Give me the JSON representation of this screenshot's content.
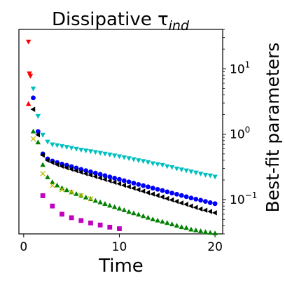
{
  "chart_data": {
    "type": "scatter",
    "title": "Dissipative τ",
    "title_subscript": "ind",
    "xlabel": "Time",
    "ylabel": "Best-fit parameters",
    "xlim": [
      -0.5,
      20.8
    ],
    "ylim": [
      0.03,
      40
    ],
    "yscale": "log",
    "y_axis_side": "right",
    "grid": false,
    "legend": "none",
    "xticks": [
      0,
      10,
      20
    ],
    "xtick_labels": [
      "0",
      "10",
      "20"
    ],
    "yticks": [
      0.1,
      1,
      10
    ],
    "series": [
      {
        "color": "#ff0000",
        "marker": "triangle-down",
        "points": [
          [
            0.5,
            26.0
          ],
          [
            0.6,
            8.5
          ],
          [
            0.7,
            7.8
          ]
        ]
      },
      {
        "color": "#ff0000",
        "marker": "triangle-up",
        "points": [
          [
            0.5,
            2.9
          ]
        ]
      },
      {
        "color": "#00bfbf",
        "marker": "triangle-down",
        "points": [
          [
            1.0,
            5.0
          ],
          [
            1.5,
            1.9
          ],
          [
            2.0,
            0.98
          ],
          [
            2.5,
            0.77
          ],
          [
            3.0,
            0.7
          ],
          [
            3.5,
            0.68
          ],
          [
            4.0,
            0.66
          ],
          [
            4.5,
            0.64
          ],
          [
            5.0,
            0.62
          ],
          [
            5.5,
            0.6
          ],
          [
            6.0,
            0.58
          ],
          [
            6.5,
            0.565
          ],
          [
            7.0,
            0.55
          ],
          [
            7.5,
            0.535
          ],
          [
            8.0,
            0.52
          ],
          [
            8.5,
            0.505
          ],
          [
            9.0,
            0.49
          ],
          [
            9.5,
            0.475
          ],
          [
            10.0,
            0.46
          ],
          [
            10.5,
            0.445
          ],
          [
            11.0,
            0.43
          ],
          [
            11.5,
            0.415
          ],
          [
            12.0,
            0.4
          ],
          [
            12.5,
            0.39
          ],
          [
            13.0,
            0.375
          ],
          [
            13.5,
            0.36
          ],
          [
            14.0,
            0.35
          ],
          [
            14.5,
            0.34
          ],
          [
            15.0,
            0.325
          ],
          [
            15.5,
            0.315
          ],
          [
            16.0,
            0.3
          ],
          [
            16.5,
            0.29
          ],
          [
            17.0,
            0.28
          ],
          [
            17.5,
            0.27
          ],
          [
            18.0,
            0.26
          ],
          [
            18.5,
            0.25
          ],
          [
            19.0,
            0.24
          ],
          [
            19.5,
            0.235
          ],
          [
            20.0,
            0.225
          ]
        ]
      },
      {
        "color": "#0000ff",
        "marker": "circle",
        "points": [
          [
            1.0,
            3.6
          ],
          [
            1.5,
            1.1
          ],
          [
            2.0,
            0.5
          ],
          [
            2.5,
            0.42
          ],
          [
            3.0,
            0.39
          ],
          [
            3.5,
            0.37
          ],
          [
            4.0,
            0.35
          ],
          [
            4.5,
            0.335
          ],
          [
            5.0,
            0.32
          ],
          [
            5.5,
            0.305
          ],
          [
            6.0,
            0.29
          ],
          [
            6.5,
            0.278
          ],
          [
            7.0,
            0.266
          ],
          [
            7.5,
            0.255
          ],
          [
            8.0,
            0.244
          ],
          [
            8.5,
            0.233
          ],
          [
            9.0,
            0.223
          ],
          [
            9.5,
            0.213
          ],
          [
            10.0,
            0.204
          ],
          [
            10.5,
            0.195
          ],
          [
            11.0,
            0.187
          ],
          [
            11.5,
            0.179
          ],
          [
            12.0,
            0.171
          ],
          [
            12.5,
            0.164
          ],
          [
            13.0,
            0.157
          ],
          [
            13.5,
            0.15
          ],
          [
            14.0,
            0.144
          ],
          [
            14.5,
            0.138
          ],
          [
            15.0,
            0.132
          ],
          [
            15.5,
            0.126
          ],
          [
            16.0,
            0.121
          ],
          [
            16.5,
            0.116
          ],
          [
            17.0,
            0.111
          ],
          [
            17.5,
            0.106
          ],
          [
            18.0,
            0.102
          ],
          [
            18.5,
            0.098
          ],
          [
            19.0,
            0.094
          ],
          [
            19.5,
            0.09
          ],
          [
            20.0,
            0.087
          ]
        ]
      },
      {
        "color": "#000000",
        "marker": "triangle-left",
        "points": [
          [
            1.0,
            2.4
          ],
          [
            1.5,
            0.98
          ],
          [
            2.0,
            0.48
          ],
          [
            2.5,
            0.4
          ],
          [
            3.0,
            0.37
          ],
          [
            3.5,
            0.345
          ],
          [
            4.0,
            0.325
          ],
          [
            4.5,
            0.308
          ],
          [
            5.0,
            0.292
          ],
          [
            5.5,
            0.277
          ],
          [
            6.0,
            0.263
          ],
          [
            6.5,
            0.25
          ],
          [
            7.0,
            0.238
          ],
          [
            7.5,
            0.226
          ],
          [
            8.0,
            0.215
          ],
          [
            8.5,
            0.204
          ],
          [
            9.0,
            0.194
          ],
          [
            9.5,
            0.184
          ],
          [
            10.0,
            0.175
          ],
          [
            10.5,
            0.166
          ],
          [
            11.0,
            0.158
          ],
          [
            11.5,
            0.15
          ],
          [
            12.0,
            0.142
          ],
          [
            12.5,
            0.135
          ],
          [
            13.0,
            0.128
          ],
          [
            13.5,
            0.122
          ],
          [
            14.0,
            0.116
          ],
          [
            14.5,
            0.11
          ],
          [
            15.0,
            0.104
          ],
          [
            15.5,
            0.099
          ],
          [
            16.0,
            0.094
          ],
          [
            16.5,
            0.089
          ],
          [
            17.0,
            0.085
          ],
          [
            17.5,
            0.08
          ],
          [
            18.0,
            0.076
          ],
          [
            18.5,
            0.072
          ],
          [
            19.0,
            0.069
          ],
          [
            19.5,
            0.066
          ],
          [
            20.0,
            0.063
          ]
        ]
      },
      {
        "color": "#008000",
        "marker": "triangle-up",
        "points": [
          [
            1.0,
            1.1
          ],
          [
            1.5,
            0.75
          ],
          [
            2.0,
            0.34
          ],
          [
            2.5,
            0.22
          ],
          [
            3.0,
            0.185
          ],
          [
            3.5,
            0.165
          ],
          [
            4.0,
            0.15
          ],
          [
            4.5,
            0.14
          ],
          [
            5.0,
            0.13
          ],
          [
            5.5,
            0.122
          ],
          [
            6.0,
            0.115
          ],
          [
            6.5,
            0.108
          ],
          [
            7.0,
            0.102
          ],
          [
            7.5,
            0.096
          ],
          [
            8.0,
            0.091
          ],
          [
            8.5,
            0.086
          ],
          [
            9.0,
            0.081
          ],
          [
            9.5,
            0.077
          ],
          [
            10.0,
            0.073
          ],
          [
            10.5,
            0.069
          ],
          [
            11.0,
            0.065
          ],
          [
            11.5,
            0.062
          ],
          [
            12.0,
            0.059
          ],
          [
            12.5,
            0.056
          ],
          [
            13.0,
            0.053
          ],
          [
            13.5,
            0.05
          ],
          [
            14.0,
            0.048
          ],
          [
            14.5,
            0.046
          ],
          [
            15.0,
            0.044
          ],
          [
            15.5,
            0.042
          ],
          [
            16.0,
            0.04
          ],
          [
            16.5,
            0.038
          ],
          [
            17.0,
            0.037
          ],
          [
            17.5,
            0.035
          ],
          [
            18.0,
            0.034
          ],
          [
            18.5,
            0.033
          ],
          [
            19.0,
            0.032
          ],
          [
            19.5,
            0.0312
          ],
          [
            20.0,
            0.0305
          ]
        ]
      },
      {
        "color": "#bfbf00",
        "marker": "x",
        "points": [
          [
            1.0,
            0.85
          ],
          [
            2.0,
            0.25
          ],
          [
            3.0,
            0.165
          ],
          [
            4.0,
            0.142
          ],
          [
            5.0,
            0.13
          ],
          [
            6.0,
            0.116
          ],
          [
            7.0,
            0.103
          ]
        ]
      },
      {
        "color": "#bf00bf",
        "marker": "square",
        "points": [
          [
            2.0,
            0.115
          ],
          [
            3.0,
            0.08
          ],
          [
            4.0,
            0.06
          ],
          [
            5.0,
            0.053
          ],
          [
            6.0,
            0.048
          ],
          [
            7.0,
            0.044
          ],
          [
            8.0,
            0.041
          ],
          [
            9.0,
            0.038
          ],
          [
            10.0,
            0.036
          ]
        ]
      }
    ]
  }
}
